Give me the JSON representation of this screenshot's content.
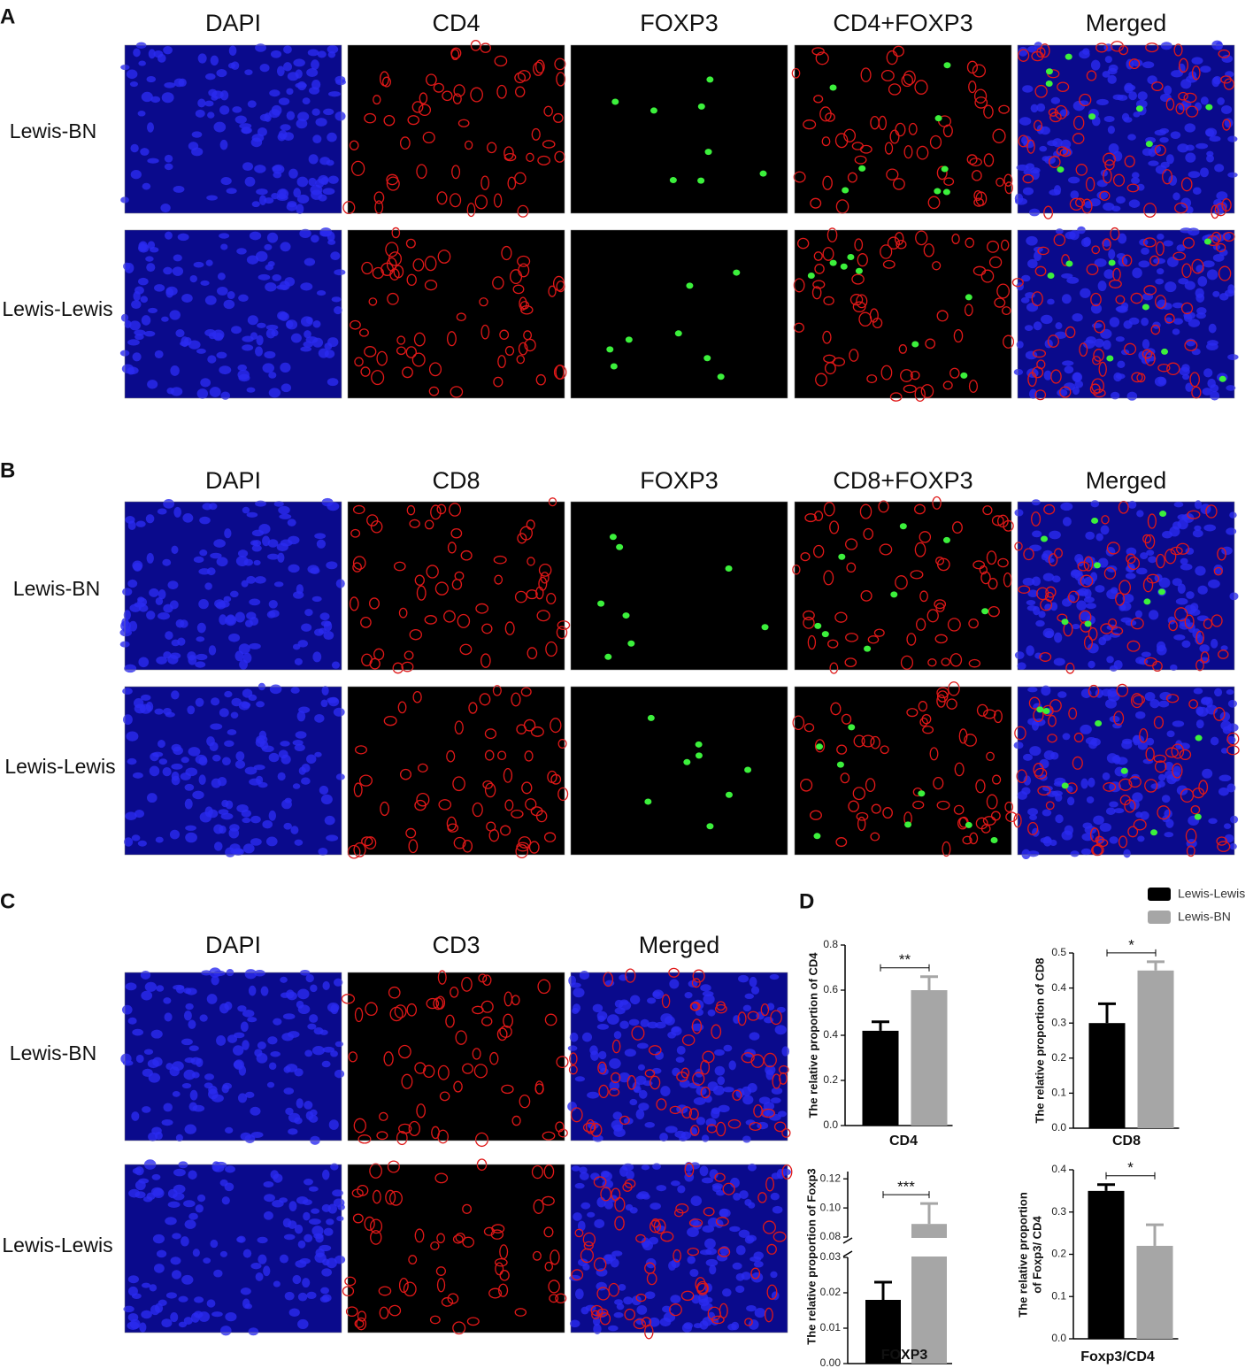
{
  "panels": [
    {
      "label": "A",
      "columns": [
        "DAPI",
        "CD4",
        "FOXP3",
        "CD4+FOXP3",
        "Merged"
      ],
      "rows": [
        "Lewis-BN",
        "Lewis-Lewis"
      ]
    },
    {
      "label": "B",
      "columns": [
        "DAPI",
        "CD8",
        "FOXP3",
        "CD8+FOXP3",
        "Merged"
      ],
      "rows": [
        "Lewis-BN",
        "Lewis-Lewis"
      ]
    },
    {
      "label": "C",
      "columns": [
        "DAPI",
        "CD3",
        "Merged"
      ],
      "rows": [
        "Lewis-BN",
        "Lewis-Lewis"
      ]
    },
    {
      "label": "D"
    }
  ],
  "legend": [
    {
      "name": "Lewis-Lewis",
      "color": "#000000"
    },
    {
      "name": "Lewis-BN",
      "color": "#a6a6a6"
    }
  ],
  "chart_data": [
    {
      "type": "bar",
      "xlabel": "CD4",
      "ylabel": "The relative proportion of CD4",
      "ylim": [
        0,
        0.8
      ],
      "yticks": [
        {
          "value": 0,
          "label": "0.0"
        },
        0.2,
        0.4,
        0.6,
        0.8
      ],
      "series": [
        {
          "values": [
            0.42
          ],
          "errors": [
            0.04
          ]
        },
        {
          "values": [
            0.6
          ],
          "errors": [
            0.06
          ]
        }
      ],
      "significance": "**"
    },
    {
      "type": "bar",
      "xlabel": "CD8",
      "ylabel": "The relative proportion of CD8",
      "ylim": [
        0,
        0.5
      ],
      "yticks": [
        {
          "value": 0,
          "label": "0.0"
        },
        0.1,
        0.2,
        0.3,
        0.4,
        0.5
      ],
      "series": [
        {
          "values": [
            0.3
          ],
          "errors": [
            0.055
          ]
        },
        {
          "values": [
            0.45
          ],
          "errors": [
            0.025
          ]
        }
      ],
      "significance": "*"
    },
    {
      "type": "bar",
      "xlabel": "FOXP3",
      "ylabel": "The relative proportion of Foxp3",
      "ylim": [
        0,
        0.125
      ],
      "axis_break": [
        0.03,
        0.08
      ],
      "yticks": [
        {
          "value": 0,
          "label": "0.00"
        },
        0.01,
        0.02,
        0.03,
        0.08,
        {
          "value": 0.1,
          "label": "0.10"
        },
        0.12
      ],
      "series": [
        {
          "values": [
            0.018
          ],
          "errors": [
            0.005
          ]
        },
        {
          "values": [
            0.089
          ],
          "errors": [
            0.014
          ]
        }
      ],
      "significance": "***"
    },
    {
      "type": "bar",
      "xlabel": "Foxp3/CD4",
      "ylabel": [
        "The relative proportion",
        "of Foxp3/ CD4"
      ],
      "ylim": [
        0,
        0.4
      ],
      "yticks": [
        {
          "value": 0,
          "label": "0.0"
        },
        0.1,
        0.2,
        0.3,
        0.4
      ],
      "series": [
        {
          "values": [
            0.35
          ],
          "errors": [
            0.015
          ]
        },
        {
          "values": [
            0.22
          ],
          "errors": [
            0.05
          ]
        }
      ],
      "significance": "*"
    }
  ]
}
